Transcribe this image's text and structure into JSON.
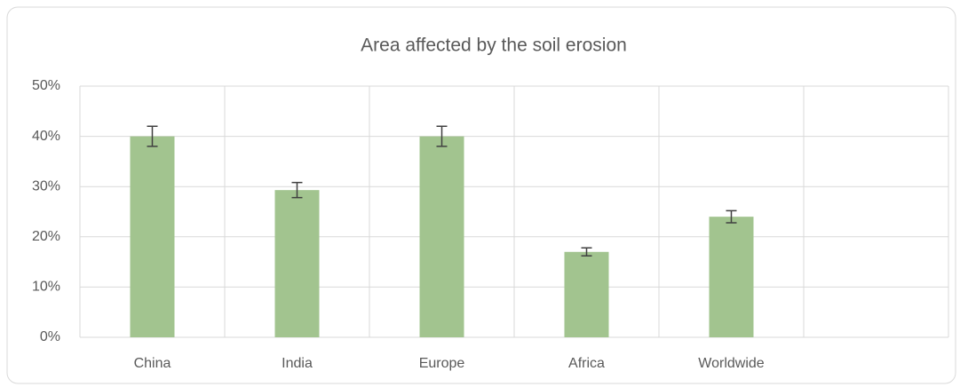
{
  "chart_data": {
    "type": "bar",
    "title": "Area affected by the soil erosion",
    "categories": [
      "China",
      "India",
      "Europe",
      "Africa",
      "Worldwide",
      null
    ],
    "values": [
      40,
      29.3,
      40,
      17,
      24,
      null
    ],
    "errors": [
      2,
      1.5,
      2,
      0.8,
      1.2,
      null
    ],
    "color": "#a2c48f",
    "ylim": [
      0,
      50
    ],
    "yticks": [
      {
        "value": 0,
        "label": "0%"
      },
      {
        "value": 10,
        "label": "10%"
      },
      {
        "value": 20,
        "label": "20%"
      },
      {
        "value": 30,
        "label": "30%"
      },
      {
        "value": 40,
        "label": "40%"
      },
      {
        "value": 50,
        "label": "50%"
      }
    ],
    "grid": true
  }
}
